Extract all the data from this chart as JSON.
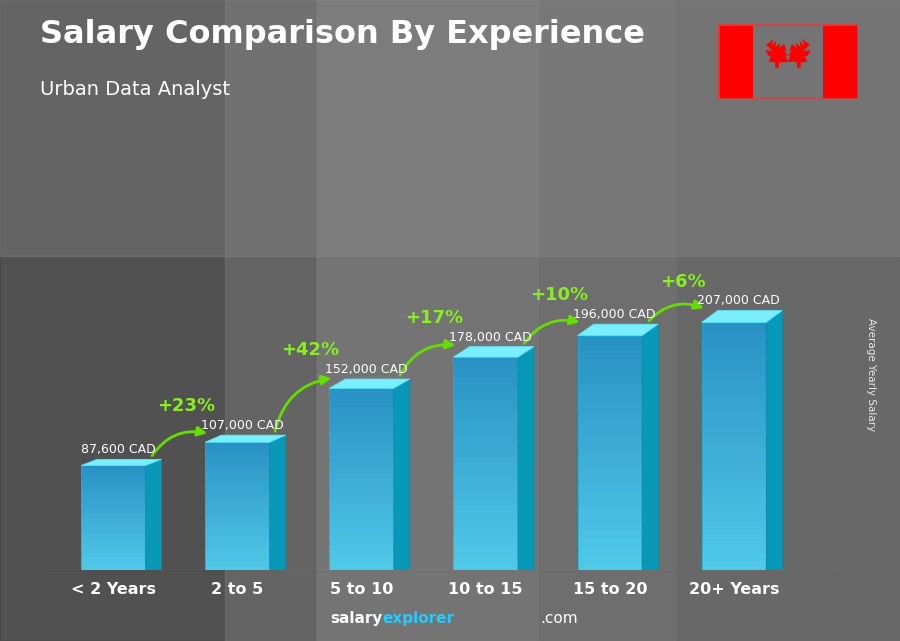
{
  "title": "Salary Comparison By Experience",
  "subtitle": "Urban Data Analyst",
  "categories": [
    "< 2 Years",
    "2 to 5",
    "5 to 10",
    "10 to 15",
    "15 to 20",
    "20+ Years"
  ],
  "values": [
    87600,
    107000,
    152000,
    178000,
    196000,
    207000
  ],
  "labels": [
    "87,600 CAD",
    "107,000 CAD",
    "152,000 CAD",
    "178,000 CAD",
    "196,000 CAD",
    "207,000 CAD"
  ],
  "pct_changes": [
    "+23%",
    "+42%",
    "+17%",
    "+10%",
    "+6%"
  ],
  "bar_face_color": "#28c8e8",
  "bar_top_color": "#78eeff",
  "bar_side_color": "#0898b8",
  "bg_color": "#6a6a6a",
  "title_color": "#ffffff",
  "label_color": "#ffffff",
  "pct_color": "#88ee22",
  "arrow_color": "#66dd00",
  "xtick_color": "#22ddff",
  "ylabel": "Average Yearly Salary",
  "footer_salary": "salary",
  "footer_explorer": "explorer",
  "footer_com": ".com",
  "footer_salary_color": "#ffffff",
  "footer_explorer_color": "#22ccff",
  "footer_com_color": "#ffffff"
}
